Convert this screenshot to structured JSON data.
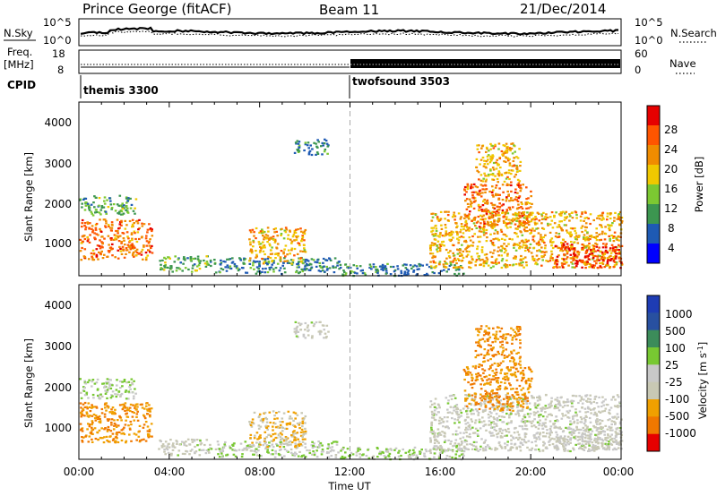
{
  "header": {
    "station": "Prince George (fitACF)",
    "beam": "Beam 11",
    "date": "21/Dec/2014"
  },
  "sky_panel": {
    "left_label": "N.Sky",
    "left_ticks": [
      "10^5",
      "10^0"
    ],
    "right_label": "N.Search",
    "right_ticks": [
      "10^5",
      "10^0"
    ]
  },
  "freq_panel": {
    "left_label_1": "Freq.",
    "left_label_2": "[MHz]",
    "left_ticks": [
      "18",
      "8"
    ],
    "right_label": "Nave",
    "right_ticks": [
      "60",
      "0"
    ]
  },
  "cpid_panel": {
    "label": "CPID",
    "programs": [
      {
        "name": "themis 3300",
        "start": "00:00"
      },
      {
        "name": "twofsound 3503",
        "start": "12:00"
      }
    ]
  },
  "power_panel": {
    "ylabel": "Slant Range [km]",
    "yticks": [
      "4000",
      "3000",
      "2000",
      "1000"
    ],
    "colorbar_label": "Power [dB]",
    "colorbar_ticks": [
      "28",
      "24",
      "20",
      "16",
      "12",
      "8",
      "4"
    ],
    "colors": [
      "#e60000",
      "#ff5500",
      "#f08c00",
      "#f0c800",
      "#7cc832",
      "#3c9650",
      "#1e5ab4",
      "#0000ff"
    ]
  },
  "velocity_panel": {
    "ylabel": "Slant Range [km]",
    "yticks": [
      "4000",
      "3000",
      "2000",
      "1000"
    ],
    "colorbar_label_main": "Velocity [m s",
    "colorbar_label_sup": "-1",
    "colorbar_label_end": "]",
    "colorbar_ticks": [
      "1000",
      "500",
      "100",
      "25",
      "-25",
      "-100",
      "-500",
      "-1000"
    ],
    "colors": [
      "#1e3cb4",
      "#2850a0",
      "#3c8c5a",
      "#78c832",
      "#c8c8c8",
      "#c8c8b4",
      "#f0a000",
      "#f07800",
      "#e60000"
    ]
  },
  "x_axis": {
    "ticks": [
      "00:00",
      "04:00",
      "08:00",
      "12:00",
      "16:00",
      "20:00",
      "00:00"
    ],
    "label": "Time UT"
  },
  "chart_data": {
    "type": "heatmap",
    "title": "Prince George (fitACF)  Beam 11  21/Dec/2014",
    "xlabel": "Time UT",
    "ylabel": "Slant Range [km]",
    "x_range_hours": [
      0,
      24
    ],
    "y_range_km": [
      180,
      4500
    ],
    "panels": [
      "Power [dB]",
      "Velocity [m s-1]"
    ],
    "power_levels_db": [
      4,
      8,
      12,
      16,
      20,
      24,
      28
    ],
    "velocity_levels_ms": [
      -1000,
      -500,
      -100,
      -25,
      25,
      100,
      500,
      1000
    ],
    "regions": [
      {
        "t": [
          0.0,
          3.2
        ],
        "r": [
          600,
          1600
        ],
        "power": 24,
        "velocity": -500
      },
      {
        "t": [
          0.0,
          2.5
        ],
        "r": [
          1700,
          2200
        ],
        "power": 12,
        "velocity": 25
      },
      {
        "t": [
          3.5,
          6.0
        ],
        "r": [
          300,
          700
        ],
        "power": 12,
        "velocity": -25
      },
      {
        "t": [
          6.0,
          11.5
        ],
        "r": [
          250,
          650
        ],
        "power": 8,
        "velocity": 25
      },
      {
        "t": [
          7.5,
          10.0
        ],
        "r": [
          500,
          1400
        ],
        "power": 20,
        "velocity": -100
      },
      {
        "t": [
          9.5,
          11.0
        ],
        "r": [
          3200,
          3600
        ],
        "power": 8,
        "velocity": -25
      },
      {
        "t": [
          11.5,
          17.0
        ],
        "r": [
          200,
          500
        ],
        "power": 8,
        "velocity": 25
      },
      {
        "t": [
          15.5,
          24.0
        ],
        "r": [
          400,
          1800
        ],
        "power": 20,
        "velocity": -25
      },
      {
        "t": [
          17.0,
          20.0
        ],
        "r": [
          1400,
          2500
        ],
        "power": 24,
        "velocity": -500
      },
      {
        "t": [
          17.5,
          19.5
        ],
        "r": [
          2500,
          3500
        ],
        "power": 20,
        "velocity": -500
      },
      {
        "t": [
          21.0,
          24.0
        ],
        "r": [
          400,
          1000
        ],
        "power": 28,
        "velocity": -25
      }
    ]
  }
}
